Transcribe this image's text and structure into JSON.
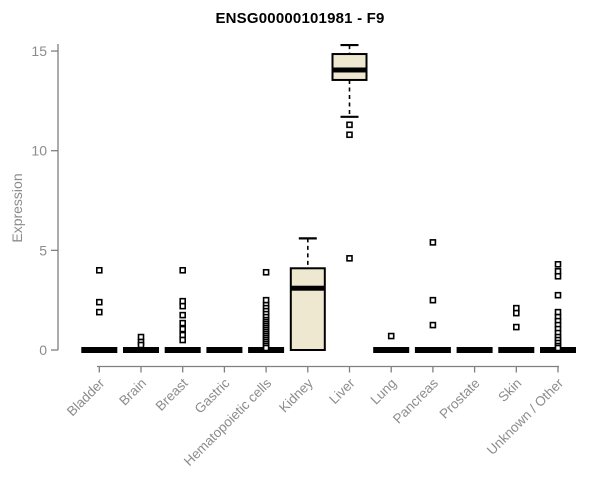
{
  "title": "ENSG00000101981 - F9",
  "y_axis_label": "Expression",
  "colors": {
    "background": "#ffffff",
    "title": "#000000",
    "axis": "#808080",
    "tick_label": "#8c8c8c",
    "box_fill": "#eee8d1",
    "box_line": "#000000",
    "outlier": "#000000"
  },
  "chart_data": {
    "type": "boxplot",
    "title": "ENSG00000101981 - F9",
    "xlabel": "",
    "ylabel": "Expression",
    "ylim": [
      -0.4,
      15.5
    ],
    "yticks": [
      0,
      5,
      10,
      15
    ],
    "grid": false,
    "legend": false,
    "categories": [
      "Bladder",
      "Brain",
      "Breast",
      "Gastric",
      "Hematopoietic cells",
      "Kidney",
      "Liver",
      "Lung",
      "Pancreas",
      "Prostate",
      "Skin",
      "Unknown / Other"
    ],
    "series": [
      {
        "name": "Bladder",
        "q1": 0,
        "median": 0,
        "q3": 0,
        "whisker_low": 0,
        "whisker_high": 0,
        "outliers": [
          4.0,
          2.4,
          1.9
        ]
      },
      {
        "name": "Brain",
        "q1": 0,
        "median": 0,
        "q3": 0,
        "whisker_low": 0,
        "whisker_high": 0,
        "outliers": [
          0.65,
          0.4,
          0.25
        ]
      },
      {
        "name": "Breast",
        "q1": 0,
        "median": 0,
        "q3": 0,
        "whisker_low": 0,
        "whisker_high": 0,
        "outliers": [
          4.0,
          2.45,
          2.2,
          1.75,
          1.35,
          1.05,
          0.75,
          0.5
        ]
      },
      {
        "name": "Gastric",
        "q1": 0,
        "median": 0,
        "q3": 0,
        "whisker_low": 0,
        "whisker_high": 0,
        "outliers": []
      },
      {
        "name": "Hematopoietic cells",
        "q1": 0,
        "median": 0,
        "q3": 0,
        "whisker_low": 0,
        "whisker_high": 0,
        "outliers": [
          3.9,
          2.5,
          2.25,
          2.1,
          1.95,
          1.8,
          1.65,
          1.5,
          1.4,
          1.3,
          1.2,
          1.1,
          1.0,
          0.9,
          0.8,
          0.7,
          0.6,
          0.5,
          0.4,
          0.3,
          0.2,
          0.1
        ]
      },
      {
        "name": "Kidney",
        "q1": 0,
        "median": 3.1,
        "q3": 4.1,
        "whisker_low": 0,
        "whisker_high": 5.6,
        "outliers": []
      },
      {
        "name": "Liver",
        "q1": 13.55,
        "median": 14.05,
        "q3": 14.85,
        "whisker_low": 11.7,
        "whisker_high": 15.3,
        "outliers": [
          11.3,
          10.8,
          4.6
        ]
      },
      {
        "name": "Lung",
        "q1": 0,
        "median": 0,
        "q3": 0,
        "whisker_low": 0,
        "whisker_high": 0,
        "outliers": [
          0.7
        ]
      },
      {
        "name": "Pancreas",
        "q1": 0,
        "median": 0,
        "q3": 0,
        "whisker_low": 0,
        "whisker_high": 0,
        "outliers": [
          5.4,
          2.5,
          1.25
        ]
      },
      {
        "name": "Prostate",
        "q1": 0,
        "median": 0,
        "q3": 0,
        "whisker_low": 0,
        "whisker_high": 0,
        "outliers": []
      },
      {
        "name": "Skin",
        "q1": 0,
        "median": 0,
        "q3": 0,
        "whisker_low": 0,
        "whisker_high": 0,
        "outliers": [
          2.1,
          1.85,
          1.15
        ]
      },
      {
        "name": "Unknown / Other",
        "q1": 0,
        "median": 0,
        "q3": 0,
        "whisker_low": 0,
        "whisker_high": 0,
        "outliers": [
          4.3,
          3.95,
          3.7,
          2.75,
          1.9,
          1.65,
          1.45,
          1.25,
          1.05,
          0.85,
          0.65,
          0.5,
          0.35,
          0.2,
          0.1
        ]
      }
    ]
  }
}
